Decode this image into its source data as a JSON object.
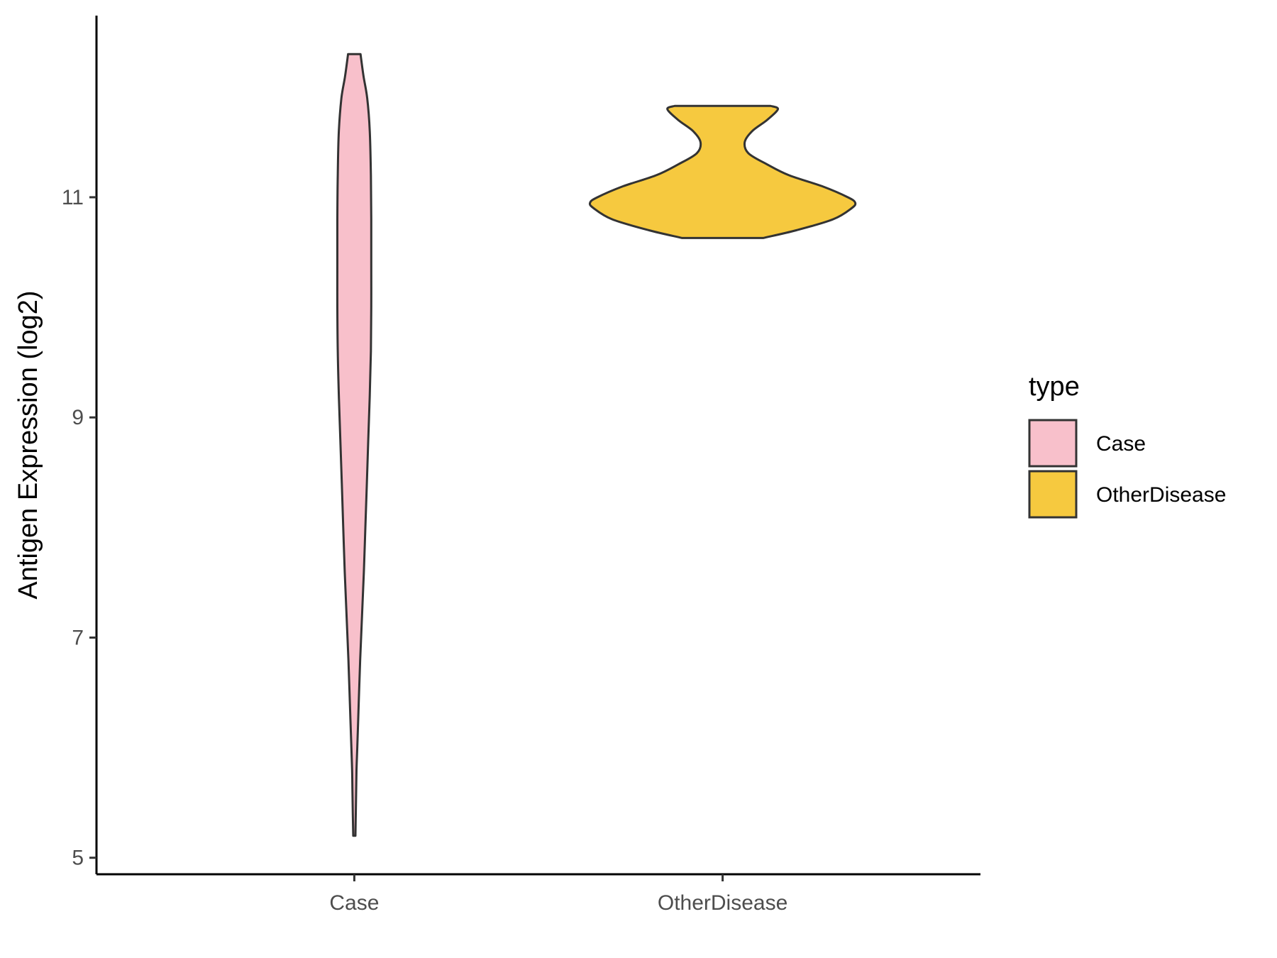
{
  "chart_data": {
    "type": "violin",
    "ylabel": "Antigen Expression (log2)",
    "xlabel": "",
    "categories": [
      "Case",
      "OtherDisease"
    ],
    "ylim": [
      4.85,
      12.65
    ],
    "yticks": [
      5,
      7,
      9,
      11
    ],
    "grid": false,
    "legend": {
      "title": "type",
      "position": "right",
      "entries": [
        "Case",
        "OtherDisease"
      ]
    },
    "series": [
      {
        "name": "Case",
        "color": "#F8C0CB",
        "min": 5.2,
        "max": 12.3,
        "density": [
          {
            "y": 5.2,
            "w": 0.003
          },
          {
            "y": 5.4,
            "w": 0.004
          },
          {
            "y": 5.6,
            "w": 0.005
          },
          {
            "y": 5.8,
            "w": 0.006
          },
          {
            "y": 6.0,
            "w": 0.008
          },
          {
            "y": 6.4,
            "w": 0.012
          },
          {
            "y": 6.8,
            "w": 0.016
          },
          {
            "y": 7.2,
            "w": 0.021
          },
          {
            "y": 7.6,
            "w": 0.026
          },
          {
            "y": 8.0,
            "w": 0.03
          },
          {
            "y": 8.4,
            "w": 0.034
          },
          {
            "y": 8.8,
            "w": 0.038
          },
          {
            "y": 9.2,
            "w": 0.042
          },
          {
            "y": 9.6,
            "w": 0.045
          },
          {
            "y": 10.0,
            "w": 0.046
          },
          {
            "y": 10.4,
            "w": 0.046
          },
          {
            "y": 10.8,
            "w": 0.046
          },
          {
            "y": 11.2,
            "w": 0.045
          },
          {
            "y": 11.6,
            "w": 0.042
          },
          {
            "y": 11.9,
            "w": 0.035
          },
          {
            "y": 12.1,
            "w": 0.025
          },
          {
            "y": 12.3,
            "w": 0.017
          }
        ]
      },
      {
        "name": "OtherDisease",
        "color": "#F6C93F",
        "min": 10.63,
        "max": 11.83,
        "density": [
          {
            "y": 10.63,
            "w": 0.11
          },
          {
            "y": 10.7,
            "w": 0.2
          },
          {
            "y": 10.8,
            "w": 0.3
          },
          {
            "y": 10.9,
            "w": 0.35
          },
          {
            "y": 10.95,
            "w": 0.36
          },
          {
            "y": 11.0,
            "w": 0.34
          },
          {
            "y": 11.1,
            "w": 0.27
          },
          {
            "y": 11.2,
            "w": 0.18
          },
          {
            "y": 11.3,
            "w": 0.12
          },
          {
            "y": 11.4,
            "w": 0.07
          },
          {
            "y": 11.5,
            "w": 0.06
          },
          {
            "y": 11.6,
            "w": 0.08
          },
          {
            "y": 11.7,
            "w": 0.12
          },
          {
            "y": 11.8,
            "w": 0.15
          },
          {
            "y": 11.83,
            "w": 0.13
          }
        ]
      }
    ]
  }
}
